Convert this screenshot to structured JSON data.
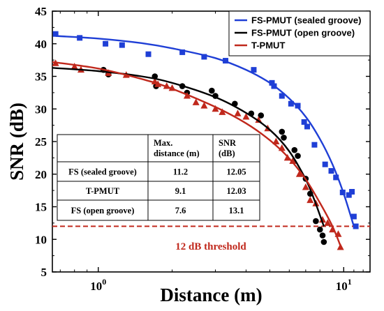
{
  "chart_data": {
    "type": "scatter",
    "xlabel": "Distance (m)",
    "ylabel": "SNR (dB)",
    "xscale": "log",
    "xlim": [
      0.65,
      12.8
    ],
    "ylim": [
      5,
      45
    ],
    "xticks": [
      {
        "value": 1,
        "base": "10",
        "exp": "0"
      },
      {
        "value": 10,
        "base": "10",
        "exp": "1"
      }
    ],
    "yticks": [
      5,
      10,
      15,
      20,
      25,
      30,
      35,
      40,
      45
    ],
    "grid": false,
    "legend": "top-right",
    "series": [
      {
        "name": "FS-PMUT (sealed groove)",
        "color": "#1f3fd6",
        "marker": "square",
        "points": [
          [
            0.67,
            41.5
          ],
          [
            0.84,
            40.9
          ],
          [
            1.07,
            40.0
          ],
          [
            1.25,
            39.8
          ],
          [
            1.6,
            38.4
          ],
          [
            2.2,
            38.7
          ],
          [
            2.7,
            38.0
          ],
          [
            3.3,
            37.4
          ],
          [
            4.3,
            36.0
          ],
          [
            5.1,
            34.0
          ],
          [
            5.2,
            33.5
          ],
          [
            5.6,
            32.0
          ],
          [
            6.1,
            30.8
          ],
          [
            6.5,
            30.5
          ],
          [
            6.9,
            28.0
          ],
          [
            7.1,
            27.3
          ],
          [
            7.6,
            24.5
          ],
          [
            8.4,
            21.5
          ],
          [
            8.9,
            20.5
          ],
          [
            9.3,
            19.5
          ],
          [
            9.9,
            17.2
          ],
          [
            10.5,
            16.8
          ],
          [
            10.8,
            17.3
          ],
          [
            11.0,
            13.5
          ],
          [
            11.2,
            12.0
          ]
        ],
        "fit": [
          [
            0.67,
            41.2
          ],
          [
            1.0,
            40.8
          ],
          [
            1.5,
            40.1
          ],
          [
            2.0,
            39.3
          ],
          [
            3.0,
            37.8
          ],
          [
            4.0,
            36.0
          ],
          [
            5.0,
            34.0
          ],
          [
            6.0,
            31.6
          ],
          [
            7.0,
            28.8
          ],
          [
            8.0,
            25.4
          ],
          [
            9.0,
            21.5
          ],
          [
            10.0,
            17.0
          ],
          [
            11.0,
            12.0
          ]
        ]
      },
      {
        "name": "FS-PMUT (open groove)",
        "color": "#000000",
        "marker": "circle",
        "points": [
          [
            1.05,
            36.0
          ],
          [
            1.1,
            35.3
          ],
          [
            1.7,
            35.0
          ],
          [
            1.72,
            33.5
          ],
          [
            2.2,
            33.5
          ],
          [
            2.3,
            32.5
          ],
          [
            2.9,
            32.8
          ],
          [
            3.0,
            32.0
          ],
          [
            3.6,
            30.8
          ],
          [
            4.2,
            29.3
          ],
          [
            4.6,
            29.0
          ],
          [
            5.6,
            26.5
          ],
          [
            5.7,
            25.6
          ],
          [
            6.3,
            23.7
          ],
          [
            6.5,
            22.8
          ],
          [
            7.0,
            19.3
          ],
          [
            7.3,
            17.0
          ],
          [
            7.7,
            12.8
          ],
          [
            8.0,
            11.5
          ],
          [
            8.2,
            10.6
          ],
          [
            8.3,
            9.6
          ]
        ],
        "fit": [
          [
            0.65,
            36.3
          ],
          [
            1.0,
            35.8
          ],
          [
            1.5,
            35.0
          ],
          [
            2.0,
            34.0
          ],
          [
            3.0,
            31.8
          ],
          [
            4.0,
            29.4
          ],
          [
            5.0,
            26.8
          ],
          [
            6.0,
            23.5
          ],
          [
            7.0,
            19.2
          ],
          [
            7.6,
            16.0
          ],
          [
            8.3,
            12.0
          ]
        ]
      },
      {
        "name": "T-PMUT",
        "color": "#c0281c",
        "marker": "triangle",
        "points": [
          [
            0.67,
            37.0
          ],
          [
            0.8,
            36.5
          ],
          [
            0.85,
            36.0
          ],
          [
            1.1,
            35.5
          ],
          [
            1.3,
            35.2
          ],
          [
            1.7,
            34.2
          ],
          [
            1.75,
            33.8
          ],
          [
            1.9,
            33.5
          ],
          [
            2.0,
            33.2
          ],
          [
            2.3,
            32.0
          ],
          [
            2.5,
            31.0
          ],
          [
            2.7,
            30.5
          ],
          [
            3.0,
            30.0
          ],
          [
            3.2,
            29.5
          ],
          [
            3.7,
            29.3
          ],
          [
            4.0,
            28.8
          ],
          [
            4.5,
            28.3
          ],
          [
            4.9,
            27.0
          ],
          [
            5.3,
            25.0
          ],
          [
            5.6,
            24.0
          ],
          [
            5.9,
            22.5
          ],
          [
            6.2,
            22.0
          ],
          [
            6.6,
            20.0
          ],
          [
            7.0,
            18.0
          ],
          [
            7.3,
            16.0
          ],
          [
            7.7,
            15.5
          ],
          [
            8.2,
            13.0
          ],
          [
            8.6,
            12.5
          ],
          [
            9.0,
            11.5
          ],
          [
            9.5,
            10.8
          ],
          [
            9.7,
            8.8
          ]
        ],
        "fit": [
          [
            0.65,
            37.2
          ],
          [
            1.0,
            36.2
          ],
          [
            1.5,
            34.6
          ],
          [
            2.0,
            33.1
          ],
          [
            3.0,
            30.3
          ],
          [
            4.0,
            27.8
          ],
          [
            5.0,
            25.2
          ],
          [
            6.0,
            22.4
          ],
          [
            7.0,
            19.2
          ],
          [
            8.0,
            15.6
          ],
          [
            9.0,
            12.0
          ],
          [
            9.7,
            9.0
          ]
        ]
      }
    ],
    "threshold": {
      "value": 12,
      "label": "12 dB threshold",
      "color": "#c0281c"
    },
    "table": {
      "headers": [
        "",
        "Max.\ndistance (m)",
        "SNR\n(dB)"
      ],
      "rows": [
        [
          "FS (sealed groove)",
          "11.2",
          "12.05"
        ],
        [
          "T-PMUT",
          "9.1",
          "12.03"
        ],
        [
          "FS (open groove)",
          "7.6",
          "13.1"
        ]
      ]
    }
  }
}
